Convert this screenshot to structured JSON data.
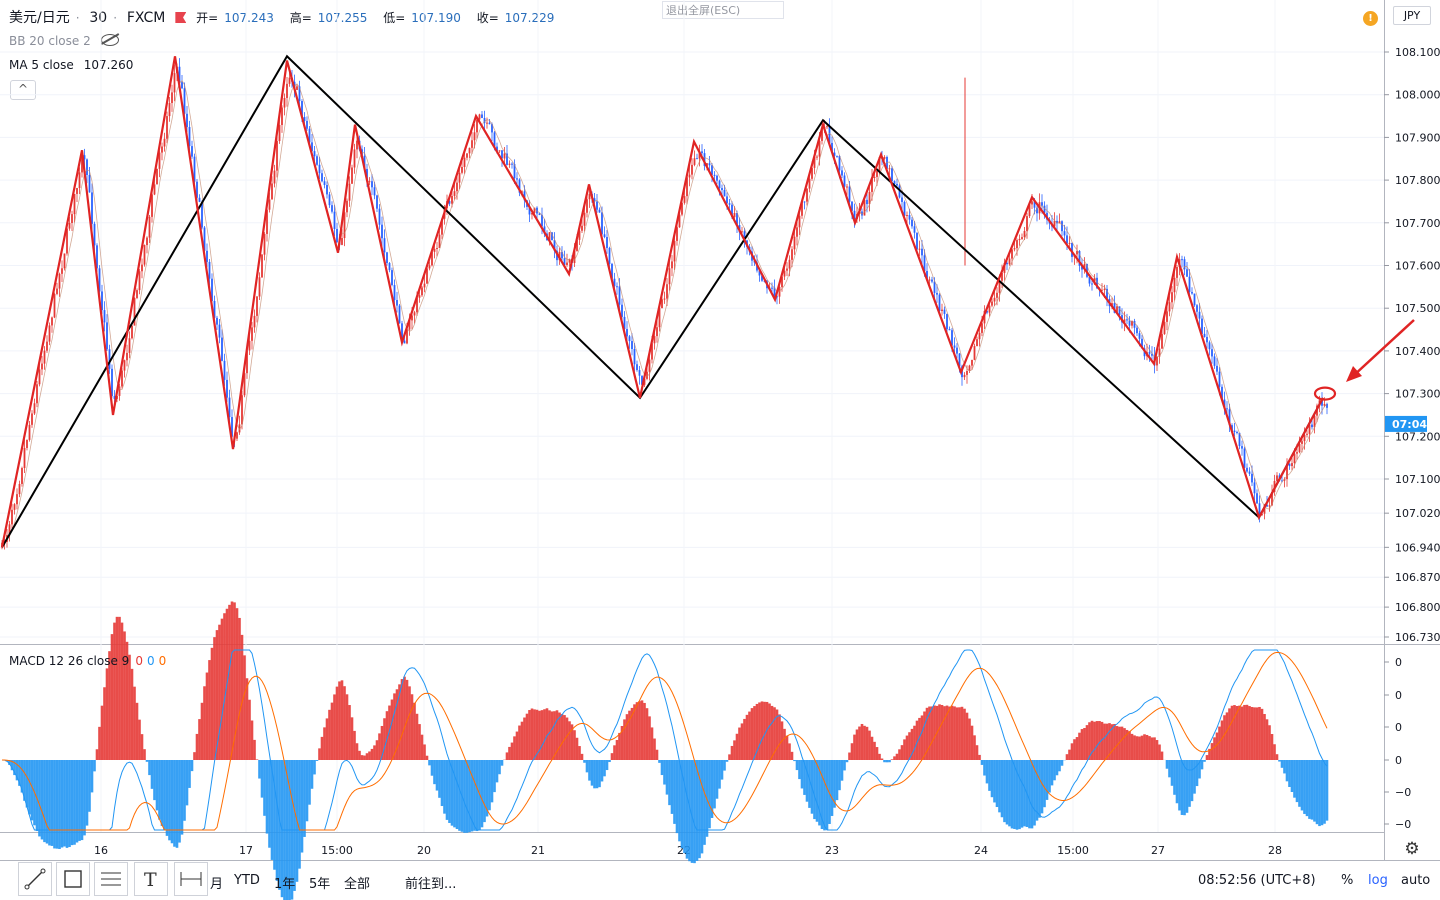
{
  "header": {
    "symbol": "美元/日元",
    "sep": "·",
    "interval": "30",
    "broker": "FXCM",
    "open_label": "开=",
    "open": "107.243",
    "high_label": "高=",
    "high": "107.255",
    "low_label": "低=",
    "low": "107.190",
    "close_label": "收=",
    "close": "107.229"
  },
  "indicators": {
    "bb": "BB 20 close 2",
    "ma_label": "MA 5 close",
    "ma_value": "107.260",
    "collapse": "^"
  },
  "exit_fullscreen": "退出全屏(ESC)",
  "alert": "!",
  "currency": "JPY",
  "price_tag": "07:04",
  "macd_legend": {
    "label": "MACD 12 26 close 9",
    "v1": "0",
    "v2": "0",
    "v3": "0"
  },
  "colors": {
    "zigzag": "#e02424",
    "trend": "#000000",
    "bull": "#e53935",
    "bear": "#2962ff",
    "macd": "#2196f3",
    "signal": "#ff6d00",
    "tag": "#2196f3"
  },
  "toolbar": {
    "ranges": [
      "月",
      "YTD",
      "1年",
      "5年",
      "全部"
    ],
    "goto": "前往到...",
    "clock": "08:52:56 (UTC+8)",
    "percent": "%",
    "log": "log",
    "auto": "auto"
  },
  "chart_data": {
    "type": "candlestick",
    "price_axis_ticks": [
      "108.100",
      "108.000",
      "107.900",
      "107.800",
      "107.700",
      "107.600",
      "107.500",
      "107.400",
      "107.300",
      "107.200",
      "107.100",
      "107.020",
      "106.940",
      "106.870",
      "106.800",
      "106.730"
    ],
    "macd_axis_ticks": [
      "0",
      "0",
      "0",
      "0",
      "−0",
      "−0"
    ],
    "x_ticks": [
      "16",
      "17",
      "15:00",
      "20",
      "21",
      "22",
      "23",
      "24",
      "15:00",
      "27",
      "28"
    ],
    "red_zigzag_prices": [
      106.94,
      107.87,
      107.25,
      108.09,
      107.17,
      108.08,
      107.63,
      107.93,
      107.42,
      107.95,
      107.58,
      107.79,
      107.29,
      107.89,
      107.52,
      107.87,
      107.7,
      107.86,
      107.35,
      107.76,
      107.37,
      107.62,
      107.01,
      107.29
    ],
    "black_zigzag_prices": [
      106.94,
      108.09,
      107.29,
      107.94,
      107.01,
      107.29
    ]
  }
}
